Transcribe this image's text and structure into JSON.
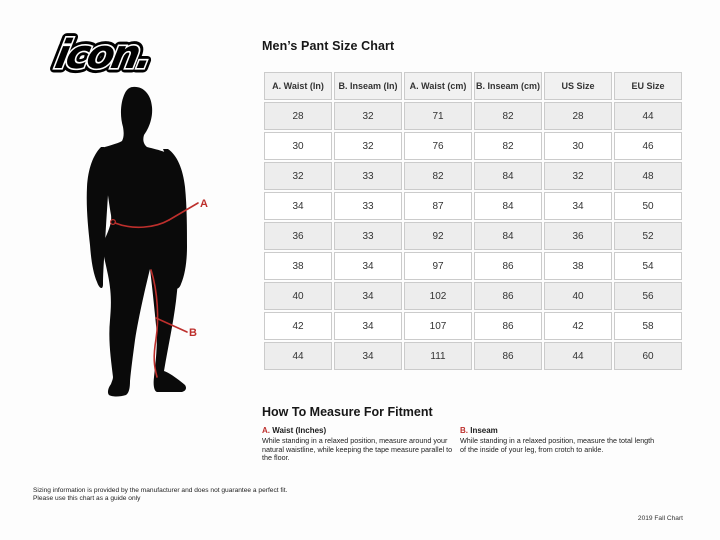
{
  "brand": {
    "logo_text": "icon."
  },
  "title": "Men’s Pant Size Chart",
  "figure": {
    "description": "male-silhouette-measurement-diagram",
    "label_a": "A",
    "label_b": "B"
  },
  "size_chart": {
    "type": "table",
    "columns": [
      "A. Waist (In)",
      "B. Inseam (In)",
      "A. Waist (cm)",
      "B. Inseam (cm)",
      "US Size",
      "EU Size"
    ],
    "rows": [
      [
        "28",
        "32",
        "71",
        "82",
        "28",
        "44"
      ],
      [
        "30",
        "32",
        "76",
        "82",
        "30",
        "46"
      ],
      [
        "32",
        "33",
        "82",
        "84",
        "32",
        "48"
      ],
      [
        "34",
        "33",
        "87",
        "84",
        "34",
        "50"
      ],
      [
        "36",
        "33",
        "92",
        "84",
        "36",
        "52"
      ],
      [
        "38",
        "34",
        "97",
        "86",
        "38",
        "54"
      ],
      [
        "40",
        "34",
        "102",
        "86",
        "40",
        "56"
      ],
      [
        "42",
        "34",
        "107",
        "86",
        "42",
        "58"
      ],
      [
        "44",
        "34",
        "111",
        "86",
        "44",
        "60"
      ]
    ]
  },
  "how_to": {
    "heading": "How To Measure For Fitment",
    "items": [
      {
        "prefix": "A.",
        "label": " Waist (Inches)",
        "text": "While standing in a relaxed position, measure around your\nnatural waistline, while keeping the tape measure parallel to\nthe floor."
      },
      {
        "prefix": "B.",
        "label": " Inseam",
        "text": "While standing in a relaxed position, measure the total length\nof the inside of your leg, from crotch to ankle."
      }
    ]
  },
  "footer": {
    "disclaimer": "Sizing information is provided by the manufacturer and does not guarantee a perfect fit.\nPlease use this chart as a guide only",
    "version": "2019 Fall Chart"
  },
  "colors": {
    "accent_red": "#bd2f2c",
    "silhouette_black": "#0a0a0a",
    "table_border": "#cbcbcb",
    "header_bg": "#f1f1f1",
    "row_alt_bg": "#ededed"
  }
}
